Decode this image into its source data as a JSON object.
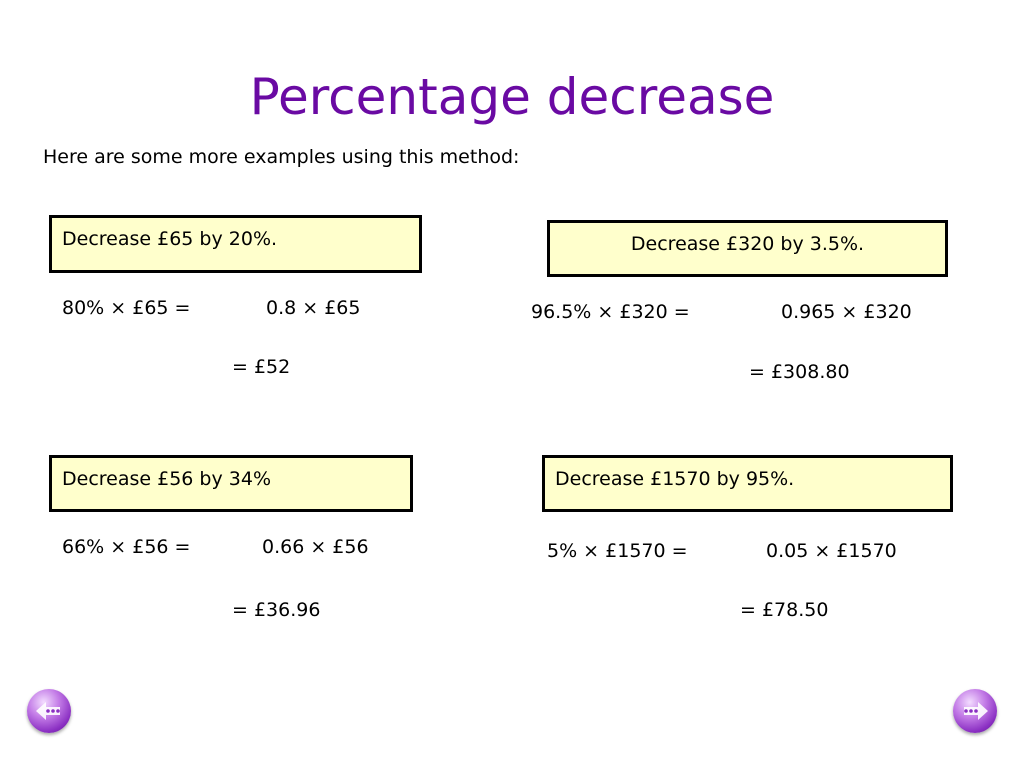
{
  "title": "Percentage decrease",
  "intro": "Here are some more examples using this method:",
  "examples": [
    {
      "question": "Decrease £65 by 20%.",
      "step1": "80% × £65 =",
      "step2": "0.8 × £65",
      "answer": "= £52"
    },
    {
      "question": "Decrease £320 by 3.5%.",
      "step1": "96.5% × £320 =",
      "step2": "0.965 × £320",
      "answer": "= £308.80"
    },
    {
      "question": "Decrease £56 by 34%",
      "step1": "66% × £56 =",
      "step2": "0.66 × £56",
      "answer": "= £36.96"
    },
    {
      "question": "Decrease £1570 by 95%.",
      "step1": "5% × £1570 =",
      "step2": "0.05 × £1570",
      "answer": "= £78.50"
    }
  ],
  "nav": {
    "prev_icon": "back-arrow-icon",
    "next_icon": "forward-arrow-icon"
  },
  "colors": {
    "title": "#6a0aa3",
    "box_fill": "#ffffcc",
    "box_border": "#000000",
    "nav_button": "#a24fd6"
  }
}
